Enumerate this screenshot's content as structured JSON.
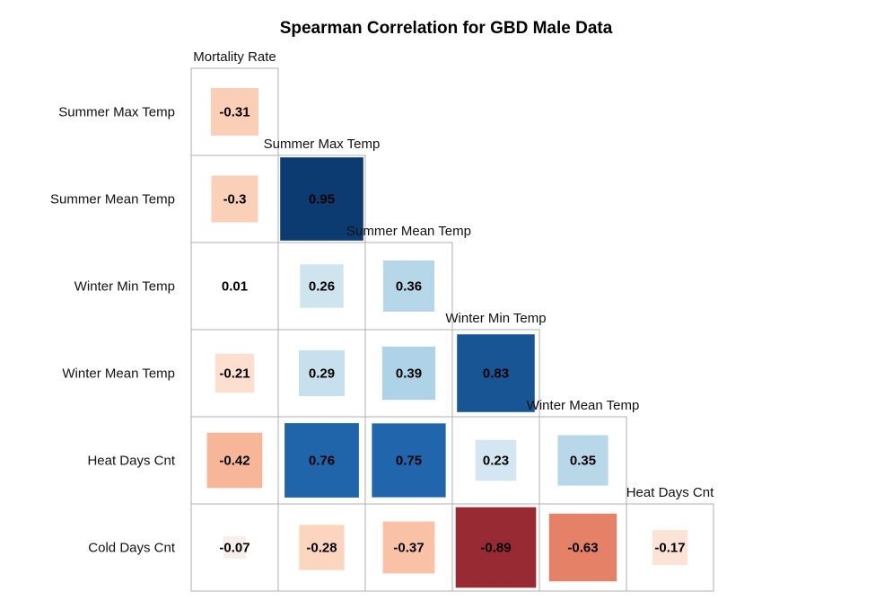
{
  "chart_data": {
    "type": "heatmap",
    "title": "Spearman Correlation for GBD Male Data",
    "row_labels": [
      "Summer Max Temp",
      "Summer Mean Temp",
      "Winter Min Temp",
      "Winter Mean Temp",
      "Heat Days Cnt",
      "Cold Days Cnt"
    ],
    "column_labels": [
      "Mortality Rate",
      "Summer Max Temp",
      "Summer Mean Temp",
      "Winter Min Temp",
      "Winter Mean Temp",
      "Heat Days Cnt"
    ],
    "values": [
      [
        -0.31
      ],
      [
        -0.3,
        0.95
      ],
      [
        0.01,
        0.26,
        0.36
      ],
      [
        -0.21,
        0.29,
        0.39,
        0.83
      ],
      [
        -0.42,
        0.76,
        0.75,
        0.23,
        0.35
      ],
      [
        -0.07,
        -0.28,
        -0.37,
        -0.89,
        -0.63,
        -0.17
      ]
    ],
    "value_labels": [
      [
        "-0.31"
      ],
      [
        "-0.3",
        "0.95"
      ],
      [
        "0.01",
        "0.26",
        "0.36"
      ],
      [
        "-0.21",
        "0.29",
        "0.39",
        "0.83"
      ],
      [
        "-0.42",
        "0.76",
        "0.75",
        "0.23",
        "0.35"
      ],
      [
        "-0.07",
        "-0.28",
        "-0.37",
        "-0.89",
        "-0.63",
        "-0.17"
      ]
    ],
    "layout": "lower-triangle",
    "color_scale": {
      "negative": "#67001f",
      "neutral": "#f7f7f7",
      "positive": "#053061",
      "colormap": "RdBu"
    },
    "square_size": "proportional to |value|"
  }
}
